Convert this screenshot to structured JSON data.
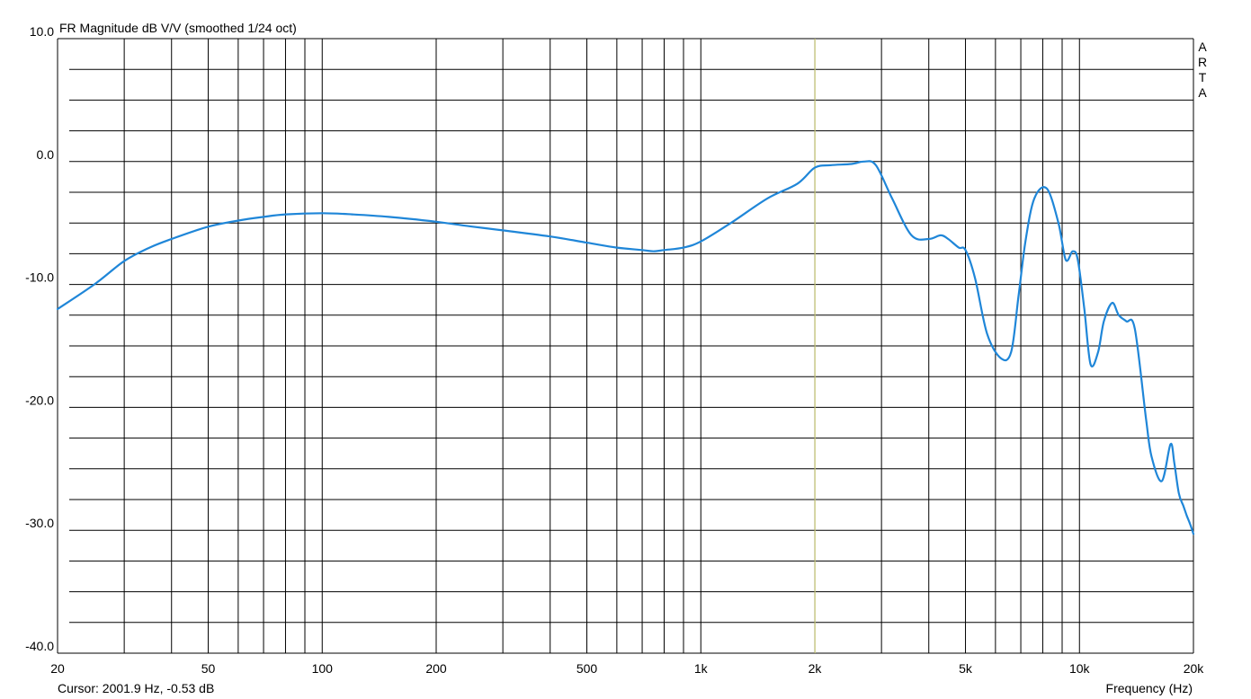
{
  "chart_data": {
    "type": "line",
    "title": "FR Magnitude dB V/V (smoothed 1/24 oct)",
    "watermark": "ARTA",
    "xlabel": "Frequency (Hz)",
    "x_scale": "log",
    "xlim": [
      20,
      20000
    ],
    "ylim": [
      -40,
      10
    ],
    "grid": true,
    "x_tick_values": [
      20,
      50,
      100,
      200,
      500,
      1000,
      2000,
      5000,
      10000,
      20000
    ],
    "x_tick_labels": [
      "20",
      "50",
      "100",
      "200",
      "500",
      "1k",
      "2k",
      "5k",
      "10k",
      "20k"
    ],
    "y_tick_values": [
      10,
      0,
      -10,
      -20,
      -30,
      -40
    ],
    "y_tick_labels": [
      "10.0",
      "0.0",
      "-10.0",
      "-20.0",
      "-30.0",
      "-40.0"
    ],
    "cursor_text": "Cursor: 2001.9 Hz, -0.53 dB",
    "cursor_freq": 2001.9,
    "colors": {
      "curve": "#1f86d8",
      "cursor": "#c8c878",
      "grid": "#000000"
    },
    "series": [
      {
        "x": [
          20,
          25,
          30,
          35,
          40,
          50,
          60,
          70,
          80,
          100,
          120,
          150,
          200,
          250,
          300,
          400,
          500,
          600,
          700,
          750,
          800,
          900,
          1000,
          1200,
          1500,
          1800,
          2000,
          2200,
          2500,
          2700,
          2900,
          3200,
          3600,
          4000,
          4300,
          4500,
          4800,
          5000,
          5300,
          5700,
          6200,
          6600,
          6900,
          7200,
          7600,
          8200,
          8800,
          9200,
          9600,
          9900,
          10300,
          10700,
          11200,
          11600,
          12200,
          12700,
          13300,
          14000,
          15000,
          15500,
          16500,
          17400,
          17800,
          18300,
          18800,
          19200,
          19600,
          20000
        ],
        "y": [
          -12.0,
          -10.0,
          -8.1,
          -7.0,
          -6.3,
          -5.3,
          -4.8,
          -4.5,
          -4.3,
          -4.2,
          -4.3,
          -4.5,
          -4.9,
          -5.3,
          -5.6,
          -6.1,
          -6.6,
          -7.0,
          -7.2,
          -7.3,
          -7.2,
          -7.0,
          -6.5,
          -5.0,
          -3.0,
          -1.8,
          -0.5,
          -0.3,
          -0.2,
          0.0,
          -0.3,
          -3.0,
          -6.0,
          -6.3,
          -6.0,
          -6.3,
          -7.0,
          -7.2,
          -9.5,
          -14.0,
          -16.0,
          -15.5,
          -11.0,
          -6.5,
          -3.0,
          -2.2,
          -5.0,
          -8.0,
          -7.3,
          -8.0,
          -12.0,
          -16.5,
          -15.5,
          -13.0,
          -11.5,
          -12.5,
          -13.0,
          -13.6,
          -21.0,
          -24.0,
          -26.0,
          -23.0,
          -24.5,
          -27.0,
          -28.0,
          -28.8,
          -29.5,
          -30.3
        ]
      }
    ]
  }
}
